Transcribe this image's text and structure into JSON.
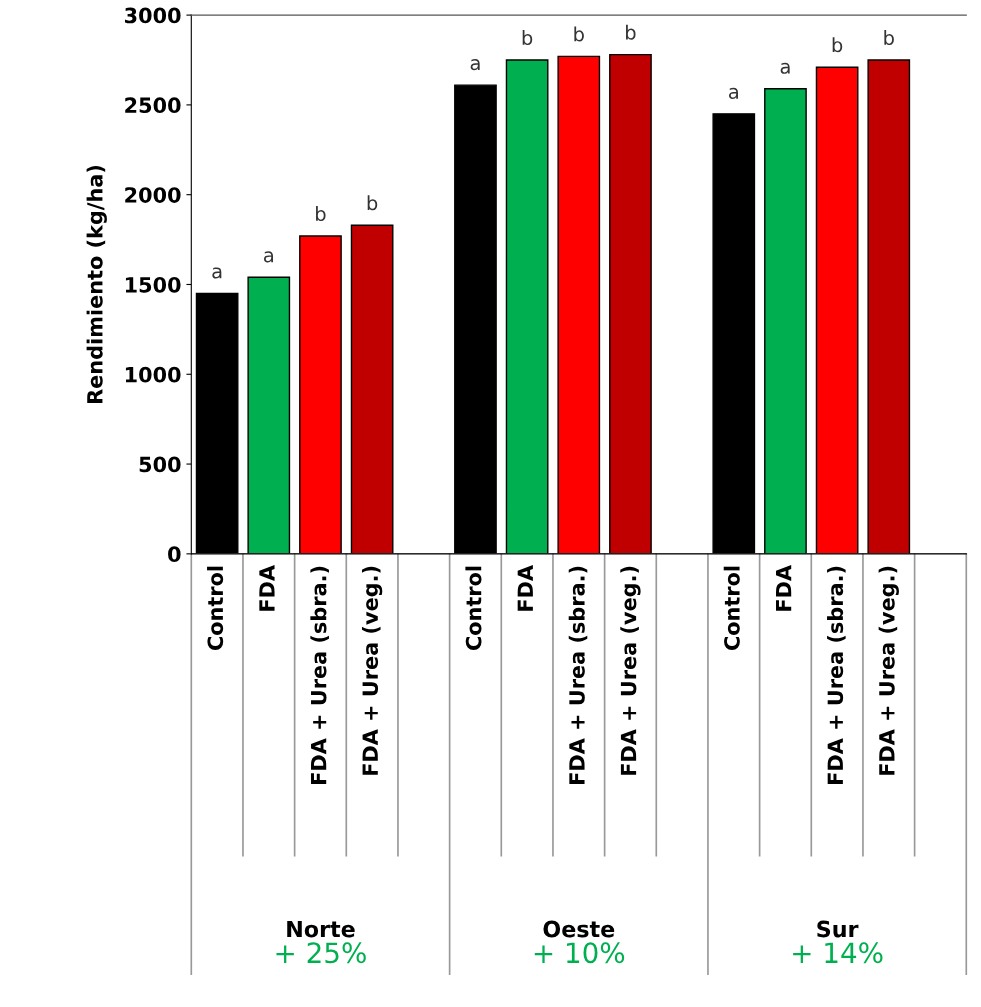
{
  "chart_data": {
    "type": "bar",
    "ylabel": "Rendimiento (kg/ha)",
    "categories": [
      "Control",
      "FDA",
      "FDA + Urea (sbra.)",
      "FDA + Urea (veg.)",
      null,
      "Control",
      "FDA",
      "FDA + Urea (sbra.)",
      "FDA + Urea (veg.)",
      null,
      "Control",
      "FDA",
      "FDA + Urea (sbra.)",
      "FDA + Urea (veg.)",
      null
    ],
    "values": [
      1450,
      1540,
      1770,
      1830,
      null,
      2610,
      2750,
      2770,
      2780,
      null,
      2450,
      2590,
      2710,
      2750,
      null
    ],
    "colors": [
      "#000000",
      "#00b050",
      "#ff0000",
      "#c00000",
      "#ffffff",
      "#000000",
      "#00b050",
      "#ff0000",
      "#c00000",
      "#ffffff",
      "#000000",
      "#00b050",
      "#ff0000",
      "#c00000",
      "#ffffff"
    ],
    "value_labels": [
      "a",
      "a",
      "b",
      "b",
      null,
      "a",
      "b",
      "b",
      "b",
      null,
      "a",
      "a",
      "b",
      "b",
      null
    ],
    "annotations": [
      "Norte",
      "+ 25%",
      "Oeste",
      "+ 10%",
      "Sur",
      "+ 14%"
    ],
    "ylim": [
      0,
      3000
    ],
    "yticks": [
      0,
      500,
      1000,
      1500,
      2000,
      2500,
      3000
    ],
    "grid": false,
    "legend": false
  }
}
